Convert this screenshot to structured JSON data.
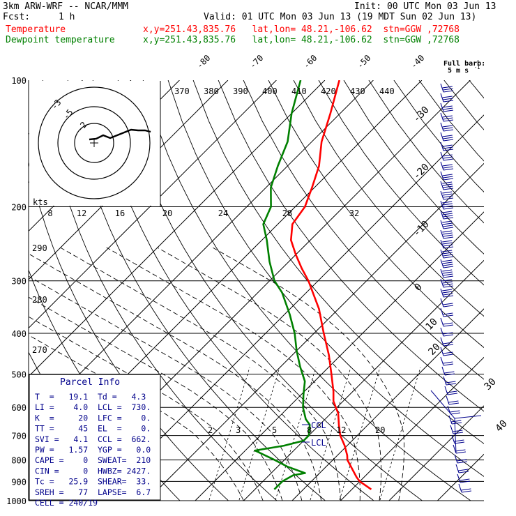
{
  "header": {
    "model": "3km ARW-WRF -- NCAR/MMM",
    "init": "Init: 00 UTC Mon 03 Jun 13",
    "fcst_label": "Fcst:",
    "fcst_value": "1 h",
    "valid": "Valid: 01 UTC Mon 03 Jun 13 (19 MDT Sun 02 Jun 13)",
    "temp_label": "Temperature",
    "temp_info": "x,y=251.43,835.76   lat,lon= 48.21,-106.62  stn=GGW ,72768",
    "dew_label": "Dewpoint temperature",
    "dew_info": "x,y=251.43,835.76   lat,lon= 48.21,-106.62  stn=GGW ,72768"
  },
  "barb_legend": {
    "line1": "Full barb:",
    "line2": "5 m s"
  },
  "colors": {
    "temperature": "#ff0000",
    "dewpoint": "#008000",
    "info": "#00008b",
    "hodograph": "#000000"
  },
  "chart_data": {
    "type": "line",
    "diagram": "skew-T log-p",
    "y_ticks": [
      "100",
      "200",
      "300",
      "400",
      "500",
      "600",
      "700",
      "800",
      "900",
      "1000"
    ],
    "y_tick_values": [
      100,
      200,
      300,
      400,
      500,
      600,
      700,
      800,
      900,
      1000
    ],
    "isotherm_labels_top": [
      "-80",
      "-70",
      "-60",
      "-50",
      "-40"
    ],
    "isotherm_labels_right": [
      "-30",
      "-20",
      "-10",
      "0",
      "10",
      "20",
      "30",
      "40"
    ],
    "theta_labels": [
      "370",
      "380",
      "390",
      "400",
      "410",
      "420",
      "430",
      "440"
    ],
    "theta_left_labels": [
      "290",
      "280",
      "270"
    ],
    "mixing_ratio_labels": [
      "2",
      "3",
      "5",
      "8",
      "12",
      "20"
    ],
    "hodo_speed_labels": [
      "8",
      "12",
      "16",
      "20",
      "24",
      "28",
      "32"
    ],
    "hodo_unit": "kts",
    "lcl_label": "LCL",
    "ccl_label": "CCL",
    "series": [
      {
        "name": "Temperature",
        "pressure": [
          940,
          900,
          880,
          850,
          800,
          780,
          740,
          700,
          660,
          620,
          580,
          550,
          500,
          450,
          400,
          350,
          300,
          280,
          260,
          240,
          220,
          200,
          180,
          160,
          140,
          120,
          100
        ],
        "temp_c": [
          24,
          20,
          18.5,
          16.5,
          13,
          12,
          9.5,
          6.5,
          4,
          1.5,
          -2,
          -4,
          -8,
          -12.5,
          -18,
          -24,
          -32,
          -36,
          -40,
          -44,
          -47,
          -48,
          -50.5,
          -53.5,
          -58,
          -62,
          -67
        ]
      },
      {
        "name": "Dewpoint temperature",
        "pressure": [
          940,
          900,
          870,
          860,
          830,
          800,
          760,
          740,
          720,
          700,
          680,
          660,
          640,
          600,
          560,
          520,
          480,
          440,
          400,
          360,
          320,
          300,
          270,
          240,
          220,
          200,
          180,
          160,
          140,
          120,
          100
        ],
        "temp_c": [
          4,
          4,
          5,
          7,
          2,
          -2,
          -8,
          -3,
          0,
          0,
          -1,
          -2,
          -4,
          -7,
          -9.5,
          -12,
          -16,
          -20,
          -24,
          -29,
          -35,
          -39,
          -44,
          -49,
          -53,
          -55,
          -59,
          -62,
          -65,
          -70,
          -75
        ]
      }
    ]
  },
  "parcel_info": {
    "title": "Parcel Info",
    "rows": [
      "T  =   19.1  Td =   4.3",
      "LI =    4.0  LCL =  730.",
      "K  =     20  LFC =    0.",
      "TT =     45  EL  =    0.",
      "SVI =   4.1  CCL =  662.",
      "PW =   1.57  YGP =   0.0",
      "CAPE =    0  SWEAT=  210",
      "CIN =     0  HWBZ= 2427.",
      "Tc =   25.9  SHEAR=  33.",
      "SREH =   77  LAPSE=  6.7",
      "CELL = 240/19"
    ]
  }
}
